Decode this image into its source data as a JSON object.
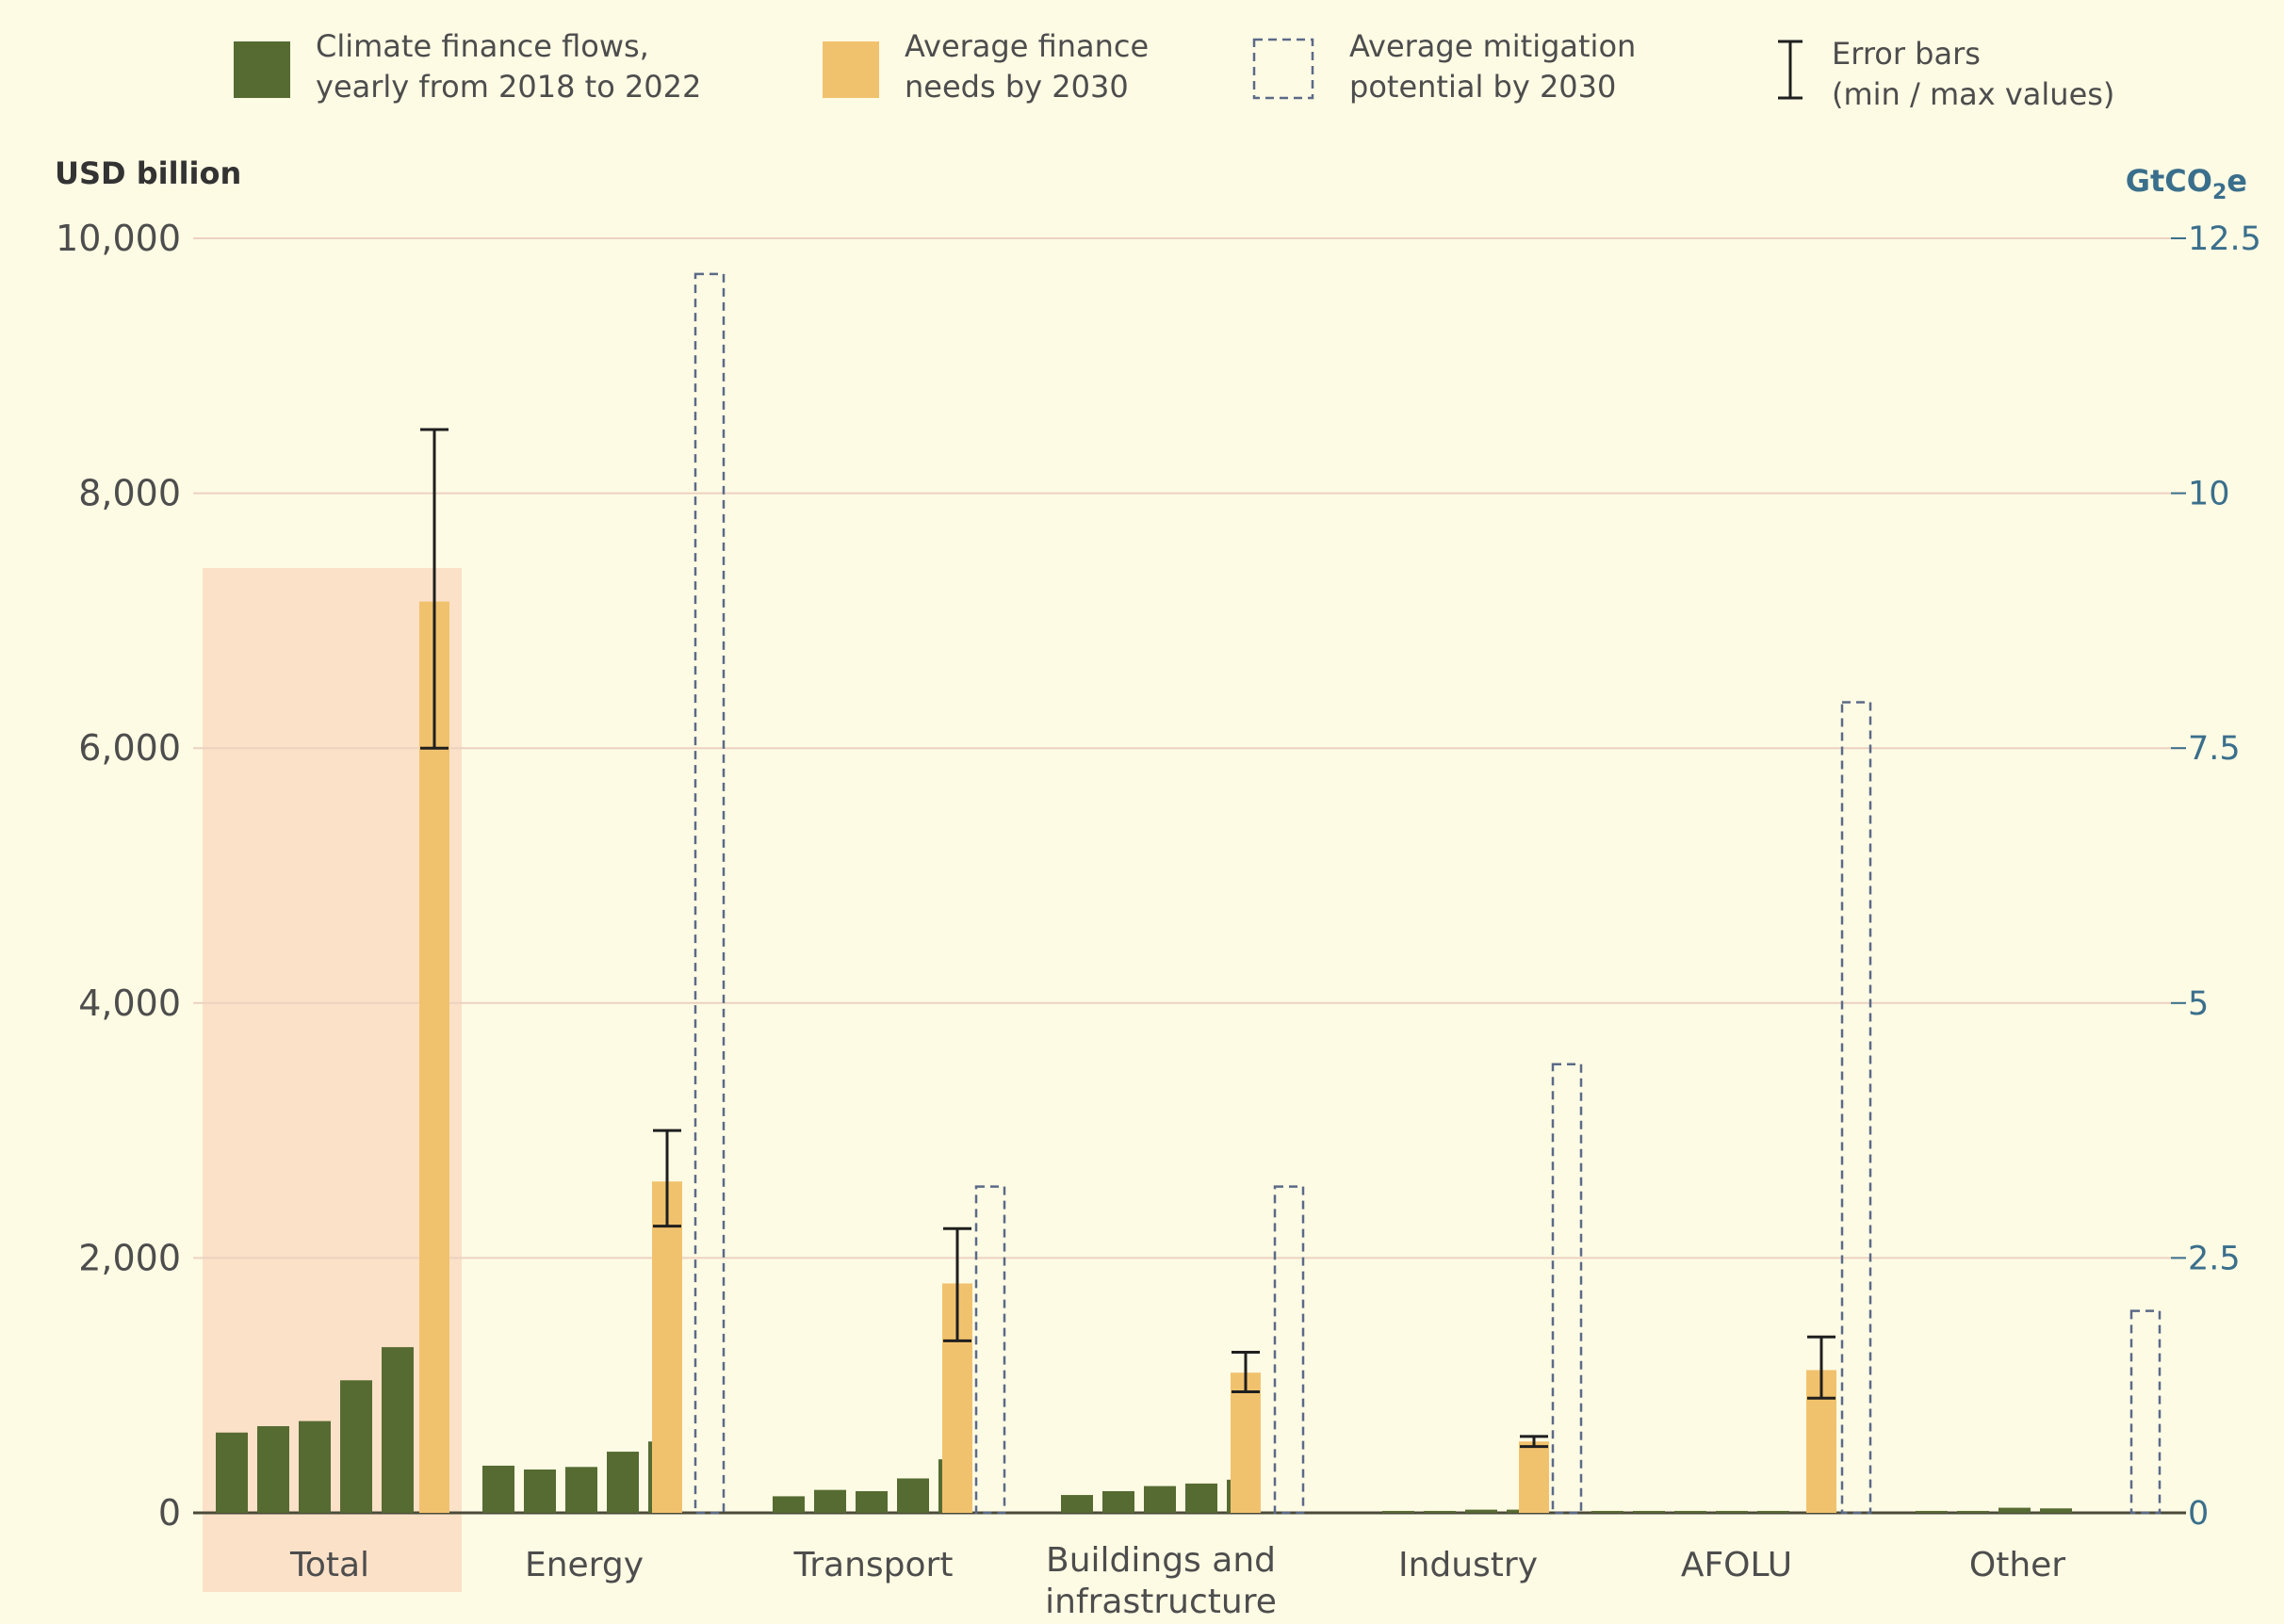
{
  "colors": {
    "background": "#fefbe4",
    "flows": "#566b32",
    "needs": "#f1c26d",
    "mitigation": "#5b6a88",
    "highlight": "#fbe1c8",
    "error": "#1f1f1f",
    "grid": "#ecd2c0",
    "right_axis": "#3a6f8c"
  },
  "legend": {
    "flows": [
      "Climate finance flows,",
      "yearly from 2018 to 2022"
    ],
    "needs": [
      "Average finance",
      "needs by 2030"
    ],
    "mitigation": [
      "Average mitigation",
      "potential by 2030"
    ],
    "error": [
      "Error bars",
      "(min / max values)"
    ]
  },
  "chart_data": {
    "type": "bar",
    "ylabel": "USD billion",
    "y2label": "GtCO₂e",
    "ylim": [
      0,
      10000
    ],
    "y2lim": [
      0,
      12.5
    ],
    "yticks": [
      "0",
      "2,000",
      "4,000",
      "6,000",
      "8,000",
      "10,000"
    ],
    "y2ticks": [
      "0",
      "2.5",
      "5",
      "7.5",
      "10",
      "12.5"
    ],
    "grid": true,
    "legend_position": "top",
    "highlight_category": "Total",
    "categories": [
      {
        "name": [
          "Total"
        ],
        "flows": [
          630,
          680,
          720,
          1040,
          1300
        ],
        "need": 7150,
        "need_min": 6000,
        "need_max": 8500,
        "mitigation": null
      },
      {
        "name": [
          "Energy"
        ],
        "flows": [
          370,
          340,
          360,
          480,
          560
        ],
        "need": 2600,
        "need_min": 2250,
        "need_max": 3000,
        "mitigation": 12.15
      },
      {
        "name": [
          "Transport"
        ],
        "flows": [
          130,
          180,
          170,
          270,
          420
        ],
        "need": 1800,
        "need_min": 1350,
        "need_max": 2230,
        "mitigation": 3.2
      },
      {
        "name": [
          "Buildings and",
          "infrastructure"
        ],
        "flows": [
          140,
          170,
          210,
          230,
          260
        ],
        "need": 1100,
        "need_min": 950,
        "need_max": 1260,
        "mitigation": 3.2
      },
      {
        "name": [
          "Industry"
        ],
        "flows": [
          15,
          15,
          25,
          25
        ],
        "need": 560,
        "need_min": 520,
        "need_max": 600,
        "mitigation": 4.4
      },
      {
        "name": [
          "AFOLU"
        ],
        "flows": [
          15,
          15,
          15,
          15,
          15
        ],
        "need": 1120,
        "need_min": 900,
        "need_max": 1380,
        "mitigation": 7.95
      },
      {
        "name": [
          "Other"
        ],
        "flows": [
          15,
          15,
          40,
          35
        ],
        "need": null,
        "need_min": null,
        "need_max": null,
        "mitigation": 1.98
      }
    ]
  }
}
